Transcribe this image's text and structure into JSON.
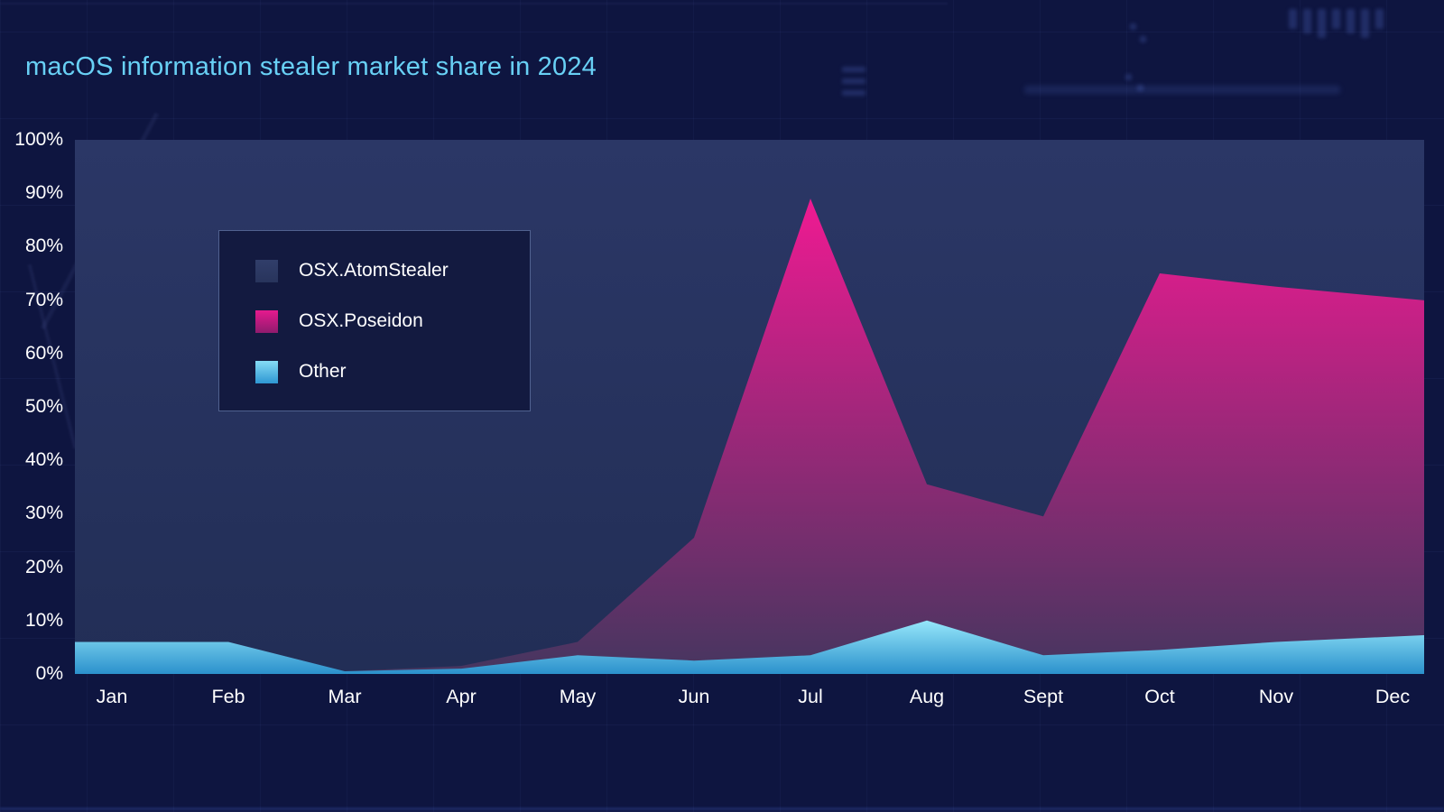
{
  "title": "macOS information stealer market share in 2024",
  "colors": {
    "page_background": "#0e1540",
    "title_text": "#68d0f5",
    "axis_text": "#ffffff",
    "legend_background": "#131a40",
    "legend_border": "#50618f",
    "plot_background_top": "#2b3766",
    "plot_background_bottom": "#222e56"
  },
  "legend": {
    "items": [
      {
        "label": "OSX.AtomStealer",
        "color_top": "#313e6a",
        "color_bottom": "#28345c"
      },
      {
        "label": "OSX.Poseidon",
        "color_top": "#e61a8e",
        "color_bottom": "#8f1b6e"
      },
      {
        "label": "Other",
        "color_top": "#86dcf5",
        "color_bottom": "#2e97d3"
      }
    ]
  },
  "chart_data": {
    "type": "area",
    "stacked": true,
    "title": "macOS information stealer market share in 2024",
    "categories": [
      "Jan",
      "Feb",
      "Mar",
      "Apr",
      "May",
      "Jun",
      "Jul",
      "Aug",
      "Sept",
      "Oct",
      "Nov",
      "Dec"
    ],
    "y_ticks": [
      "0%",
      "10%",
      "20%",
      "30%",
      "40%",
      "50%",
      "60%",
      "70%",
      "80%",
      "90%",
      "100%"
    ],
    "ylim": [
      0,
      100
    ],
    "grid": false,
    "legend_position": "inside-top-left",
    "unit": "percent",
    "stack_order_bottom_to_top": [
      "Other",
      "OSX.Poseidon",
      "OSX.AtomStealer"
    ],
    "series": [
      {
        "name": "OSX.AtomStealer",
        "values": [
          94,
          94,
          99.5,
          98.5,
          94,
          74.5,
          11,
          64.5,
          70.5,
          25,
          27.5,
          29.5
        ],
        "color_top": "#2b3766",
        "color_bottom": "#222e56"
      },
      {
        "name": "OSX.Poseidon",
        "values": [
          0,
          0,
          0,
          0.5,
          2.5,
          23,
          85.5,
          25.5,
          26,
          70.5,
          66.5,
          63.5
        ],
        "color_top": "#ef1a92",
        "color_bottom": "#45365f"
      },
      {
        "name": "Other",
        "values": [
          6,
          6,
          0.5,
          1,
          3.5,
          2.5,
          3.5,
          10,
          3.5,
          4.5,
          6,
          7
        ],
        "color_top": "#96e7fa",
        "color_bottom": "#2b91cc"
      }
    ]
  }
}
